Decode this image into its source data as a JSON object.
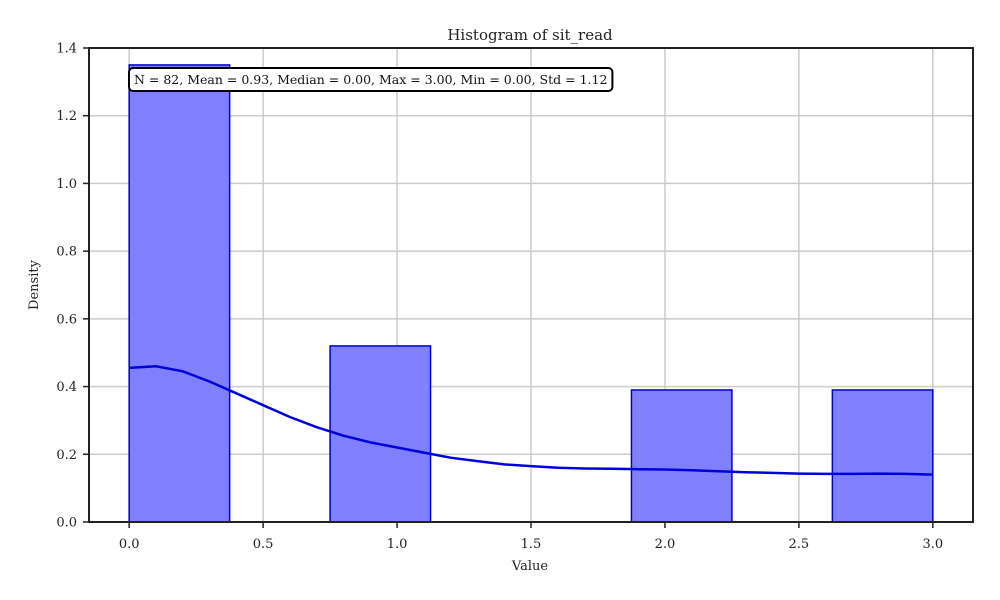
{
  "chart_data": {
    "type": "bar",
    "subtype": "histogram-with-kde",
    "title": "Histogram of sit_read",
    "xlabel": "Value",
    "ylabel": "Density",
    "xlim": [
      -0.15,
      3.15
    ],
    "ylim": [
      0,
      1.4
    ],
    "x_ticks": [
      0.0,
      0.5,
      1.0,
      1.5,
      2.0,
      2.5,
      3.0
    ],
    "x_tick_labels": [
      "0.0",
      "0.5",
      "1.0",
      "1.5",
      "2.0",
      "2.5",
      "3.0"
    ],
    "y_ticks": [
      0.0,
      0.2,
      0.4,
      0.6,
      0.8,
      1.0,
      1.2,
      1.4
    ],
    "y_tick_labels": [
      "0.0",
      "0.2",
      "0.4",
      "0.6",
      "0.8",
      "1.0",
      "1.2",
      "1.4"
    ],
    "grid": true,
    "bins": [
      {
        "x0": 0.0,
        "x1": 0.375,
        "density": 1.35
      },
      {
        "x0": 0.75,
        "x1": 1.125,
        "density": 0.52
      },
      {
        "x0": 1.875,
        "x1": 2.25,
        "density": 0.39
      },
      {
        "x0": 2.625,
        "x1": 3.0,
        "density": 0.39
      }
    ],
    "kde": {
      "x": [
        0.0,
        0.1,
        0.2,
        0.3,
        0.4,
        0.5,
        0.6,
        0.7,
        0.8,
        0.9,
        1.0,
        1.1,
        1.2,
        1.3,
        1.4,
        1.5,
        1.6,
        1.7,
        1.8,
        1.9,
        2.0,
        2.1,
        2.2,
        2.3,
        2.4,
        2.5,
        2.6,
        2.7,
        2.8,
        2.9,
        3.0
      ],
      "y": [
        0.455,
        0.46,
        0.445,
        0.415,
        0.38,
        0.345,
        0.31,
        0.28,
        0.255,
        0.235,
        0.22,
        0.205,
        0.19,
        0.18,
        0.17,
        0.165,
        0.16,
        0.158,
        0.157,
        0.156,
        0.155,
        0.153,
        0.15,
        0.147,
        0.145,
        0.143,
        0.142,
        0.142,
        0.143,
        0.142,
        0.14
      ]
    },
    "annotation": "N = 82, Mean = 0.93, Median = 0.00, Max = 3.00, Min = 0.00, Std = 1.12",
    "colors": {
      "bar_fill": "#8080ff",
      "bar_edge": "#0000cc",
      "kde_line": "#0000dd",
      "grid": "#cccccc",
      "axes": "#222222"
    }
  }
}
